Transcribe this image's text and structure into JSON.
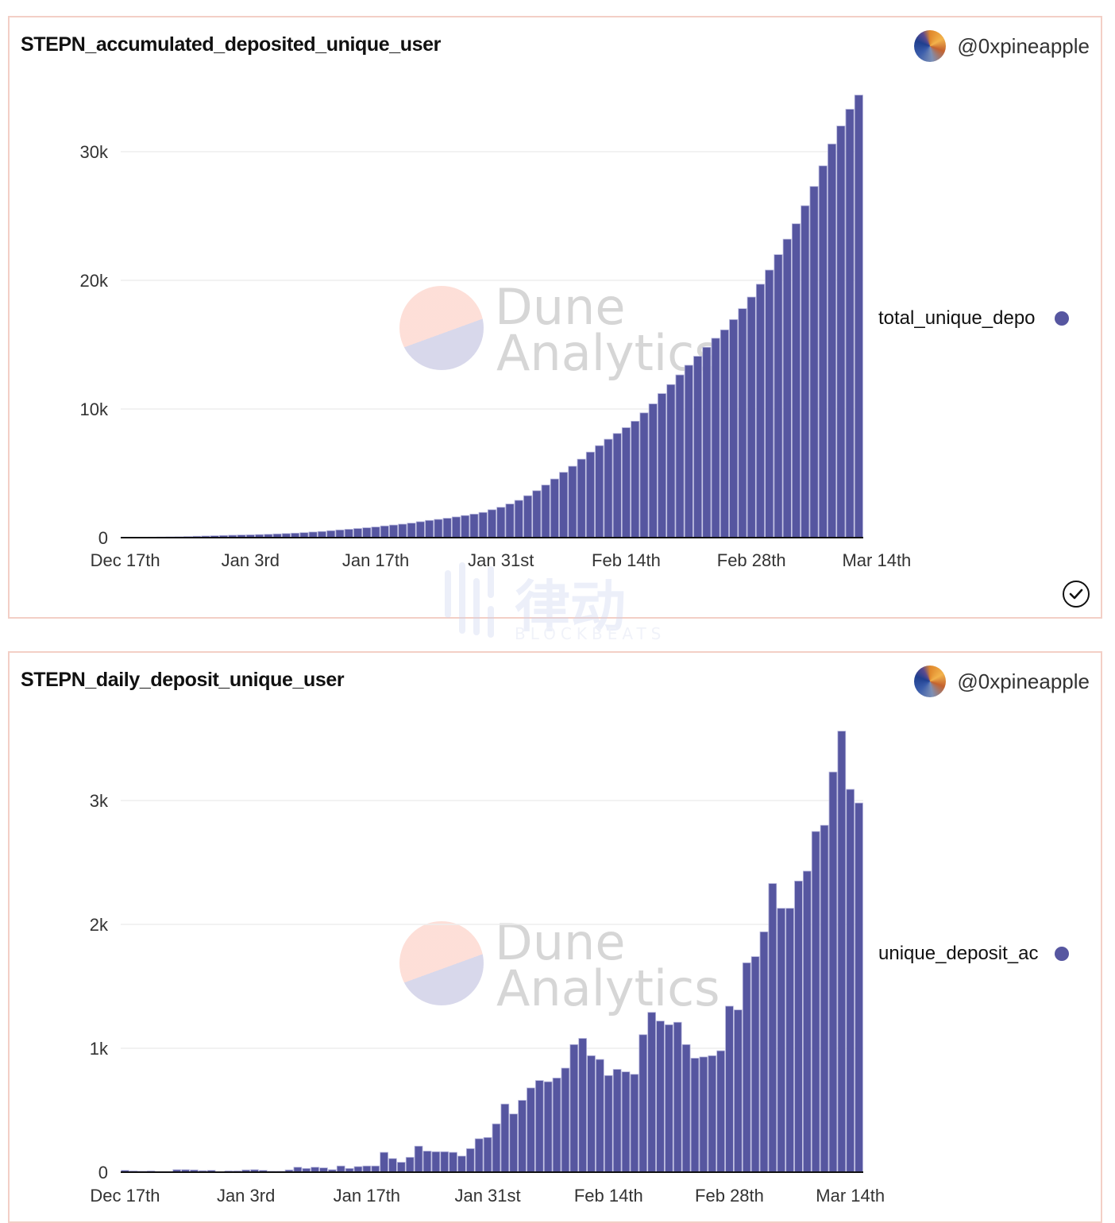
{
  "colors": {
    "bar": "#5656a0",
    "bar_edge": "#b6b6dc",
    "card_border": "#f3cfc6",
    "grid": "#eeeeee",
    "axis": "#111111"
  },
  "author": {
    "handle": "@0xpineapple",
    "avatar_icon": "user-avatar"
  },
  "watermark": {
    "line1": "Dune",
    "line2": "Analytics",
    "blockbeats_cn": "律动",
    "blockbeats_en": "BLOCKBEATS"
  },
  "status_icon": "check-circle-icon",
  "chart_data": [
    {
      "type": "bar",
      "title": "STEPN_accumulated_deposited_unique_user",
      "legend": [
        "total_unique_depo"
      ],
      "legend_placement": "right",
      "xlabel": "",
      "ylabel": "",
      "ylim": [
        0,
        34500
      ],
      "yticks": [
        0,
        10000,
        20000,
        30000
      ],
      "ytick_labels": [
        "0",
        "10k",
        "20k",
        "30k"
      ],
      "xtick_labels": [
        "Dec 17th",
        "Jan 3rd",
        "Jan 17th",
        "Jan 31st",
        "Feb 14th",
        "Feb 28th",
        "Mar 14th"
      ],
      "xtick_index": [
        0,
        14,
        28,
        42,
        56,
        70,
        84
      ],
      "grid": true,
      "series": [
        {
          "name": "total_unique_depo",
          "values": [
            10,
            20,
            30,
            40,
            50,
            60,
            70,
            90,
            110,
            130,
            150,
            170,
            190,
            210,
            220,
            240,
            260,
            290,
            320,
            350,
            390,
            440,
            480,
            540,
            600,
            650,
            710,
            770,
            830,
            910,
            980,
            1050,
            1130,
            1240,
            1340,
            1420,
            1510,
            1610,
            1720,
            1830,
            1960,
            2170,
            2360,
            2620,
            2900,
            3260,
            3650,
            4090,
            4560,
            5080,
            5550,
            6100,
            6650,
            7150,
            7650,
            8100,
            8550,
            9050,
            9700,
            10400,
            11200,
            11900,
            12650,
            13400,
            14100,
            14800,
            15500,
            16150,
            16950,
            17800,
            18700,
            19700,
            20800,
            22000,
            23200,
            24400,
            25800,
            27300,
            28900,
            30600,
            32000,
            33300,
            34400
          ]
        }
      ]
    },
    {
      "type": "bar",
      "title": "STEPN_daily_deposit_unique_user",
      "legend": [
        "unique_deposit_ac"
      ],
      "legend_placement": "right",
      "xlabel": "",
      "ylabel": "",
      "ylim": [
        0,
        3600
      ],
      "yticks": [
        0,
        1000,
        2000,
        3000
      ],
      "ytick_labels": [
        "0",
        "1k",
        "2k",
        "3k"
      ],
      "xtick_labels": [
        "Dec 17th",
        "Jan 3rd",
        "Jan 17th",
        "Jan 31st",
        "Feb 14th",
        "Feb 28th",
        "Mar 14th"
      ],
      "xtick_index": [
        0,
        14,
        28,
        42,
        56,
        70,
        84
      ],
      "grid": true,
      "series": [
        {
          "name": "unique_deposit_ac",
          "values": [
            15,
            10,
            8,
            10,
            5,
            5,
            20,
            20,
            18,
            12,
            15,
            0,
            10,
            10,
            18,
            20,
            15,
            8,
            8,
            18,
            40,
            30,
            40,
            35,
            20,
            50,
            30,
            45,
            50,
            50,
            160,
            110,
            80,
            120,
            210,
            170,
            165,
            165,
            160,
            130,
            190,
            270,
            280,
            390,
            550,
            470,
            580,
            680,
            740,
            730,
            760,
            840,
            1030,
            1080,
            940,
            910,
            780,
            830,
            810,
            790,
            1110,
            1290,
            1220,
            1190,
            1210,
            1030,
            920,
            930,
            940,
            980,
            1340,
            1310,
            1690,
            1740,
            1940,
            2330,
            2130,
            2130,
            2350,
            2430,
            2750,
            2800,
            3230,
            3560,
            3090,
            2980
          ]
        }
      ]
    }
  ]
}
